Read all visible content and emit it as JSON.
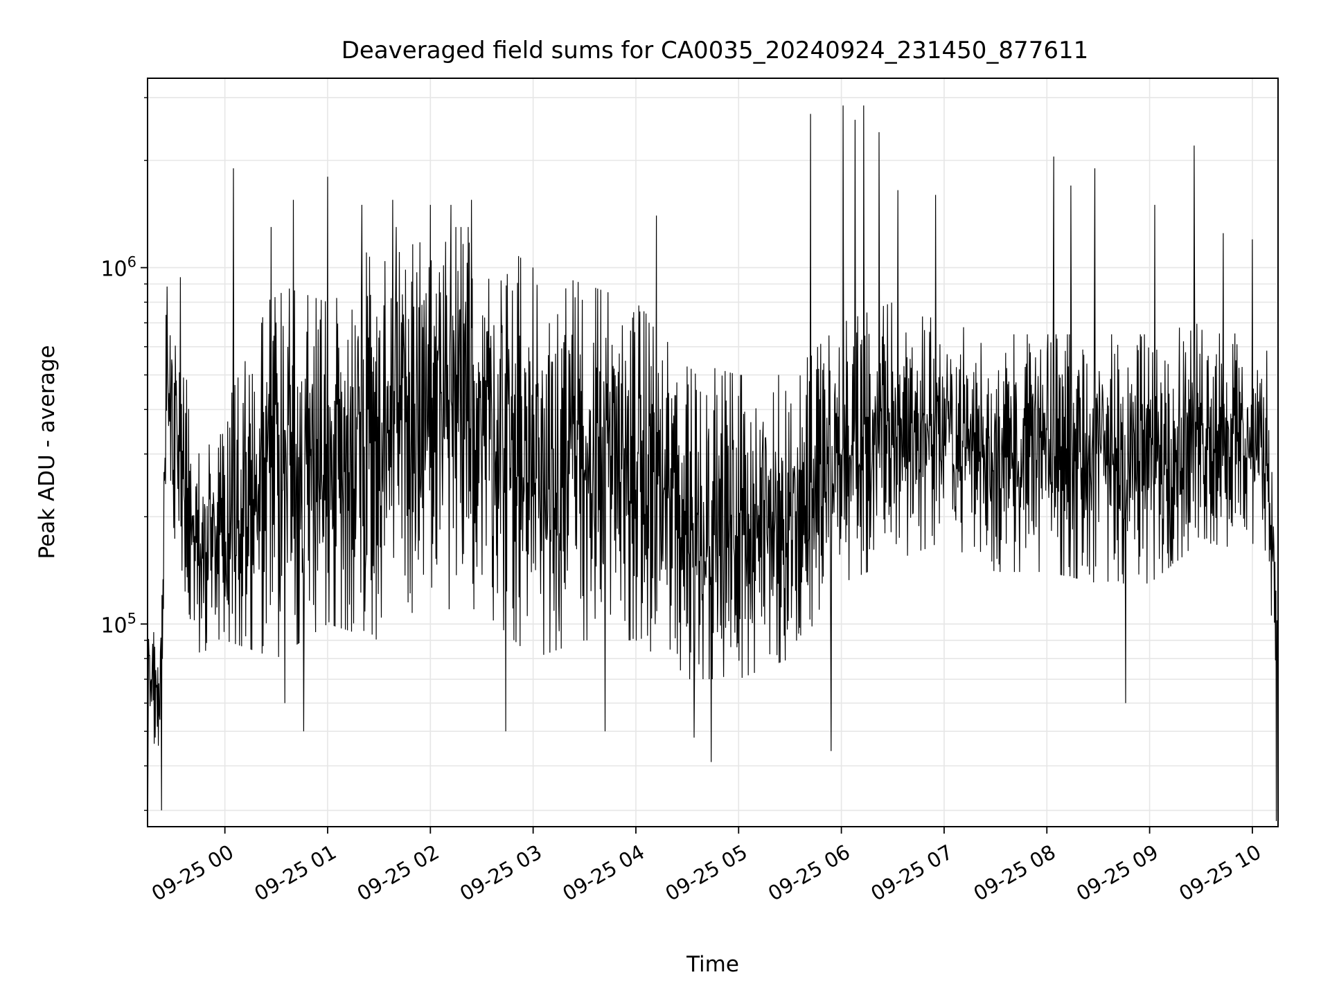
{
  "chart_data": {
    "type": "line",
    "title": "Deaveraged field sums for CA0035_20240924_231450_877611",
    "xlabel": "Time",
    "ylabel": "Peak ADU - average",
    "y_scale": "log",
    "ylim": [
      27000,
      3400000
    ],
    "xlim": [
      "2024-09-24 23:14:50",
      "2024-09-25 10:15:00"
    ],
    "grid": true,
    "line_color": "#000000",
    "grid_color": "#e6e6e6",
    "x_ticks": [
      {
        "t": "2024-09-25 00:00",
        "label": "09-25 00"
      },
      {
        "t": "2024-09-25 01:00",
        "label": "09-25 01"
      },
      {
        "t": "2024-09-25 02:00",
        "label": "09-25 02"
      },
      {
        "t": "2024-09-25 03:00",
        "label": "09-25 03"
      },
      {
        "t": "2024-09-25 04:00",
        "label": "09-25 04"
      },
      {
        "t": "2024-09-25 05:00",
        "label": "09-25 05"
      },
      {
        "t": "2024-09-25 06:00",
        "label": "09-25 06"
      },
      {
        "t": "2024-09-25 07:00",
        "label": "09-25 07"
      },
      {
        "t": "2024-09-25 08:00",
        "label": "09-25 08"
      },
      {
        "t": "2024-09-25 09:00",
        "label": "09-25 09"
      },
      {
        "t": "2024-09-25 10:00",
        "label": "09-25 10"
      }
    ],
    "y_ticks_major": [
      {
        "value": 100000,
        "base": "10",
        "exp": "5"
      },
      {
        "value": 1000000,
        "base": "10",
        "exp": "6"
      }
    ],
    "y_ticks_minor": [
      30000,
      40000,
      50000,
      60000,
      70000,
      80000,
      90000,
      200000,
      300000,
      400000,
      500000,
      600000,
      700000,
      800000,
      900000,
      2000000,
      3000000
    ],
    "envelope": {
      "t": [
        "2024-09-24 23:14:50",
        "2024-09-24 23:22",
        "2024-09-24 23:26",
        "2024-09-24 23:32",
        "2024-09-24 23:45",
        "2024-09-25 00:00",
        "2024-09-25 00:30",
        "2024-09-25 01:00",
        "2024-09-25 01:30",
        "2024-09-25 02:00",
        "2024-09-25 02:30",
        "2024-09-25 03:00",
        "2024-09-25 03:30",
        "2024-09-25 04:00",
        "2024-09-25 04:30",
        "2024-09-25 05:00",
        "2024-09-25 05:30",
        "2024-09-25 06:00",
        "2024-09-25 06:30",
        "2024-09-25 07:00",
        "2024-09-25 07:30",
        "2024-09-25 08:00",
        "2024-09-25 08:30",
        "2024-09-25 09:00",
        "2024-09-25 09:30",
        "2024-09-25 10:00",
        "2024-09-25 10:09",
        "2024-09-25 10:15:00"
      ],
      "low": [
        60000,
        35000,
        300000,
        150000,
        80000,
        90000,
        80000,
        100000,
        90000,
        110000,
        110000,
        80000,
        90000,
        90000,
        70000,
        70000,
        80000,
        130000,
        150000,
        170000,
        140000,
        140000,
        130000,
        130000,
        170000,
        160000,
        150000,
        55000
      ],
      "high": [
        90000,
        100000,
        900000,
        700000,
        300000,
        400000,
        900000,
        800000,
        1300000,
        1300000,
        1300000,
        1000000,
        900000,
        800000,
        550000,
        500000,
        500000,
        700000,
        800000,
        700000,
        650000,
        650000,
        650000,
        650000,
        700000,
        650000,
        600000,
        130000
      ]
    },
    "spikes": [
      {
        "t": "2024-09-24 23:15",
        "value": 31000
      },
      {
        "t": "2024-09-24 23:23",
        "value": 30000
      },
      {
        "t": "2024-09-24 23:34",
        "value": 940000
      },
      {
        "t": "2024-09-25 00:05",
        "value": 1900000
      },
      {
        "t": "2024-09-25 00:27",
        "value": 1300000
      },
      {
        "t": "2024-09-25 00:35",
        "value": 60000
      },
      {
        "t": "2024-09-25 00:40",
        "value": 1550000
      },
      {
        "t": "2024-09-25 00:46",
        "value": 50000
      },
      {
        "t": "2024-09-25 01:00",
        "value": 1800000
      },
      {
        "t": "2024-09-25 01:20",
        "value": 1500000
      },
      {
        "t": "2024-09-25 01:38",
        "value": 1550000
      },
      {
        "t": "2024-09-25 02:00",
        "value": 1500000
      },
      {
        "t": "2024-09-25 02:12",
        "value": 1500000
      },
      {
        "t": "2024-09-25 02:24",
        "value": 1550000
      },
      {
        "t": "2024-09-25 02:44",
        "value": 50000
      },
      {
        "t": "2024-09-25 03:42",
        "value": 50000
      },
      {
        "t": "2024-09-25 04:12",
        "value": 1400000
      },
      {
        "t": "2024-09-25 04:34",
        "value": 48000
      },
      {
        "t": "2024-09-25 04:44",
        "value": 41000
      },
      {
        "t": "2024-09-25 05:42",
        "value": 2700000
      },
      {
        "t": "2024-09-25 05:54",
        "value": 44000
      },
      {
        "t": "2024-09-25 06:01",
        "value": 2850000
      },
      {
        "t": "2024-09-25 06:08",
        "value": 2600000
      },
      {
        "t": "2024-09-25 06:13",
        "value": 2850000
      },
      {
        "t": "2024-09-25 06:22",
        "value": 2400000
      },
      {
        "t": "2024-09-25 06:33",
        "value": 1650000
      },
      {
        "t": "2024-09-25 06:55",
        "value": 1600000
      },
      {
        "t": "2024-09-25 08:04",
        "value": 2050000
      },
      {
        "t": "2024-09-25 08:14",
        "value": 1700000
      },
      {
        "t": "2024-09-25 08:28",
        "value": 1900000
      },
      {
        "t": "2024-09-25 08:46",
        "value": 60000
      },
      {
        "t": "2024-09-25 09:03",
        "value": 1500000
      },
      {
        "t": "2024-09-25 09:26",
        "value": 2200000
      },
      {
        "t": "2024-09-25 09:43",
        "value": 1250000
      },
      {
        "t": "2024-09-25 10:00",
        "value": 1200000
      },
      {
        "t": "2024-09-25 10:14",
        "value": 28000
      }
    ]
  }
}
